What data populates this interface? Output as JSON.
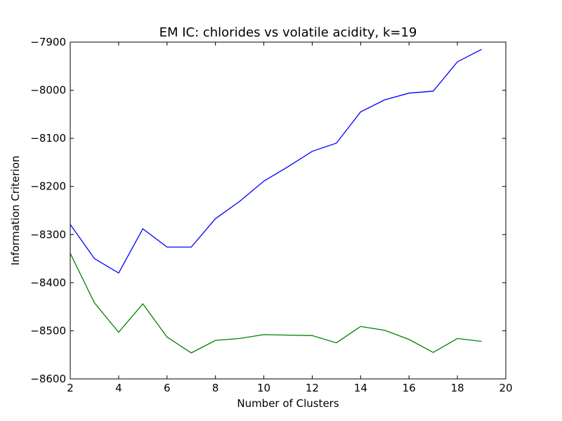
{
  "chart_data": {
    "type": "line",
    "title": "EM IC: chlorides vs volatile acidity, k=19",
    "xlabel": "Number of Clusters",
    "ylabel": "Information Criterion",
    "xlim": [
      2,
      20
    ],
    "ylim": [
      -8600,
      -7900
    ],
    "xticks": [
      2,
      4,
      6,
      8,
      10,
      12,
      14,
      16,
      18,
      20
    ],
    "yticks": [
      -7900,
      -8000,
      -8100,
      -8200,
      -8300,
      -8400,
      -8500,
      -8600
    ],
    "ytick_labels": [
      "−7900",
      "−8000",
      "−8100",
      "−8200",
      "−8300",
      "−8400",
      "−8500",
      "−8600"
    ],
    "grid": false,
    "x": [
      2,
      3,
      4,
      5,
      6,
      7,
      8,
      9,
      10,
      11,
      12,
      13,
      14,
      15,
      16,
      17,
      18,
      19
    ],
    "series": [
      {
        "color": "#0000ff",
        "values": [
          -8279,
          -8350,
          -8380,
          -8288,
          -8326,
          -8326,
          -8267,
          -8231,
          -8189,
          -8159,
          -8127,
          -8110,
          -8045,
          -8020,
          -8006,
          -8002,
          -7941,
          -7915
        ]
      },
      {
        "color": "#008000",
        "values": [
          -8339,
          -8442,
          -8503,
          -8444,
          -8513,
          -8546,
          -8520,
          -8516,
          -8508,
          -8509,
          -8510,
          -8525,
          -8491,
          -8499,
          -8518,
          -8545,
          -8516,
          -8522
        ]
      }
    ]
  }
}
